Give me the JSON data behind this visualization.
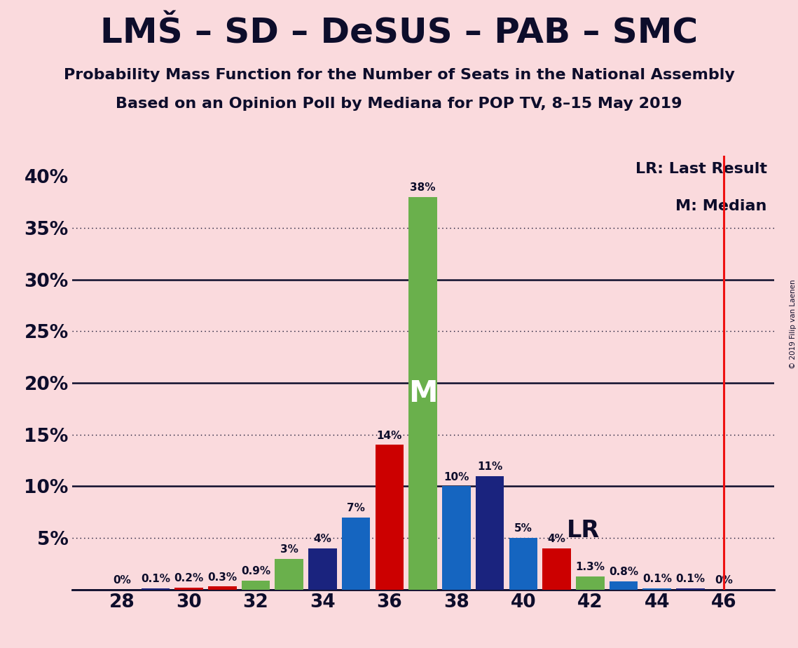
{
  "title": "LMŠ – SD – DeSUS – PAB – SMC",
  "subtitle1": "Probability Mass Function for the Number of Seats in the National Assembly",
  "subtitle2": "Based on an Opinion Poll by Mediana for POP TV, 8–15 May 2019",
  "copyright": "© 2019 Filip van Laenen",
  "background_color": "#fadadd",
  "bar_data": [
    {
      "x": 28,
      "value": 0.0,
      "color": "#1a237e",
      "label": "0%"
    },
    {
      "x": 29,
      "value": 0.001,
      "color": "#1a237e",
      "label": "0.1%"
    },
    {
      "x": 30,
      "value": 0.002,
      "color": "#cc0000",
      "label": "0.2%"
    },
    {
      "x": 31,
      "value": 0.003,
      "color": "#cc0000",
      "label": "0.3%"
    },
    {
      "x": 32,
      "value": 0.009,
      "color": "#6ab04c",
      "label": "0.9%"
    },
    {
      "x": 33,
      "value": 0.03,
      "color": "#6ab04c",
      "label": "3%"
    },
    {
      "x": 34,
      "value": 0.04,
      "color": "#1a237e",
      "label": "4%"
    },
    {
      "x": 35,
      "value": 0.07,
      "color": "#1565c0",
      "label": "7%"
    },
    {
      "x": 36,
      "value": 0.14,
      "color": "#cc0000",
      "label": "14%"
    },
    {
      "x": 37,
      "value": 0.38,
      "color": "#6ab04c",
      "label": "38%"
    },
    {
      "x": 38,
      "value": 0.1,
      "color": "#1565c0",
      "label": "10%"
    },
    {
      "x": 39,
      "value": 0.11,
      "color": "#1a237e",
      "label": "11%"
    },
    {
      "x": 40,
      "value": 0.05,
      "color": "#1565c0",
      "label": "5%"
    },
    {
      "x": 41,
      "value": 0.04,
      "color": "#cc0000",
      "label": "4%"
    },
    {
      "x": 42,
      "value": 0.013,
      "color": "#6ab04c",
      "label": "1.3%"
    },
    {
      "x": 43,
      "value": 0.008,
      "color": "#1565c0",
      "label": "0.8%"
    },
    {
      "x": 44,
      "value": 0.001,
      "color": "#1565c0",
      "label": "0.1%"
    },
    {
      "x": 45,
      "value": 0.001,
      "color": "#1a237e",
      "label": "0.1%"
    },
    {
      "x": 46,
      "value": 0.0,
      "color": "#1a237e",
      "label": "0%"
    }
  ],
  "median_x": 37,
  "median_label": "M",
  "lr_x": 46,
  "lr_label": "LR",
  "lr_line_color": "#ee1111",
  "xlim": [
    26.5,
    47.5
  ],
  "ylim": [
    0,
    0.42
  ],
  "yticks": [
    0.0,
    0.05,
    0.1,
    0.15,
    0.2,
    0.25,
    0.3,
    0.35,
    0.4
  ],
  "ytick_labels": [
    "",
    "5%",
    "10%",
    "15%",
    "20%",
    "25%",
    "30%",
    "35%",
    "40%"
  ],
  "xticks": [
    28,
    30,
    32,
    34,
    36,
    38,
    40,
    42,
    44,
    46
  ],
  "solid_yticks": [
    0.1,
    0.2,
    0.3
  ],
  "dotted_yticks": [
    0.05,
    0.15,
    0.25,
    0.35
  ],
  "text_color": "#0d0d2b",
  "legend_lr": "LR: Last Result",
  "legend_m": "M: Median",
  "bar_width": 0.85,
  "title_fontsize": 36,
  "subtitle_fontsize": 16,
  "ytick_fontsize": 19,
  "xtick_fontsize": 19
}
